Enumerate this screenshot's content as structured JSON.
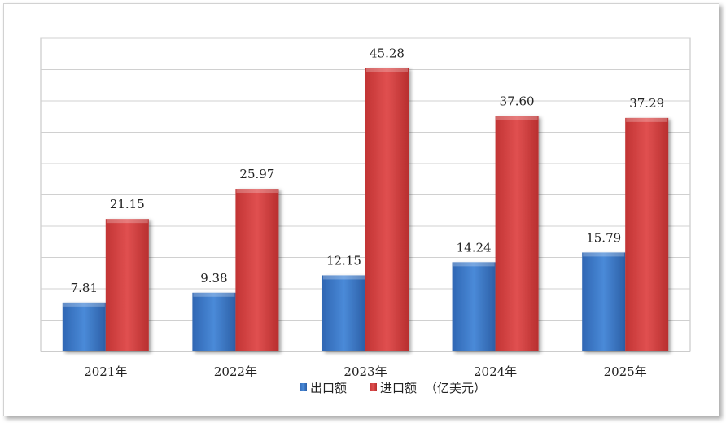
{
  "chart_data": {
    "type": "bar",
    "categories": [
      "2021年",
      "2022年",
      "2023年",
      "2024年",
      "2025年"
    ],
    "series": [
      {
        "name": "出口额",
        "values": [
          7.81,
          9.38,
          12.15,
          14.24,
          15.79
        ],
        "color": "#3a78c9"
      },
      {
        "name": "进口额",
        "values": [
          21.15,
          25.97,
          45.28,
          37.6,
          37.29
        ],
        "color": "#d94040"
      }
    ],
    "value_labels": [
      [
        "7.81",
        "9.38",
        "12.15",
        "14.24",
        "15.79"
      ],
      [
        "21.15",
        "25.97",
        "45.28",
        "37.60",
        "37.29"
      ]
    ],
    "unit_note": "（亿美元）",
    "title": "",
    "xlabel": "",
    "ylabel": "",
    "ylim": [
      0,
      50
    ],
    "grid": true,
    "y_axis_labels_shown": false,
    "legend_position": "bottom"
  }
}
